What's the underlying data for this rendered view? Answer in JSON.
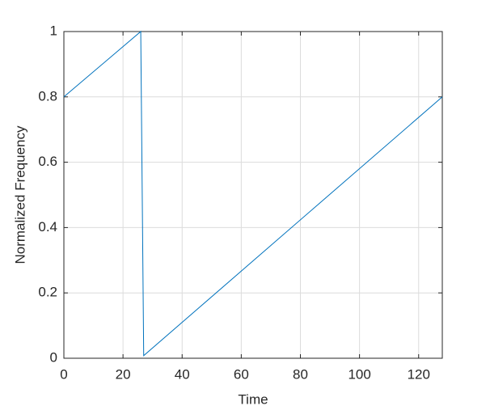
{
  "chart_data": {
    "type": "line",
    "xlabel": "Time",
    "ylabel": "Normalized Frequency",
    "x": [
      0,
      26,
      27,
      128
    ],
    "series": [
      {
        "color": "#0072bd",
        "values": [
          0.8,
          1.0,
          0.008,
          0.8
        ]
      }
    ],
    "xlim": [
      0,
      128
    ],
    "xticks": [
      0,
      20,
      40,
      60,
      80,
      100,
      120
    ],
    "ylim": [
      0,
      1
    ],
    "yticks": [
      0,
      0.2,
      0.4,
      0.6,
      0.8,
      1
    ],
    "grid": true
  }
}
